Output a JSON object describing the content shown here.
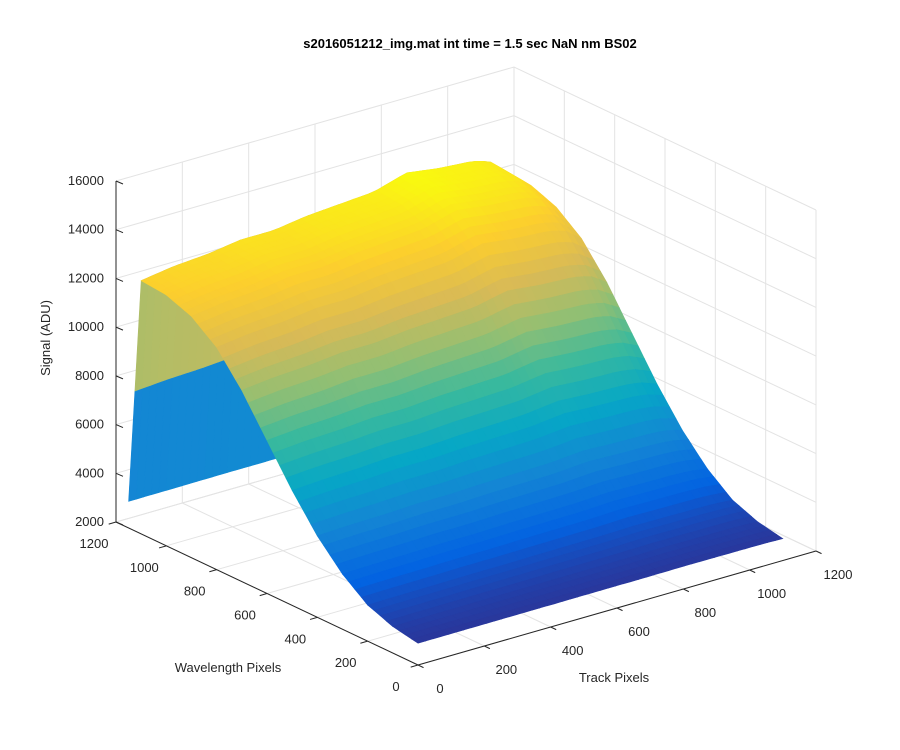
{
  "chart_data": {
    "type": "surface",
    "title": "s2016051212_img.mat int time = 1.5 sec  NaN nm BS02",
    "xlabel": "Track Pixels",
    "ylabel": "Wavelength Pixels",
    "zlabel": "Signal (ADU)",
    "xlim": [
      0,
      1200
    ],
    "ylim": [
      0,
      1200
    ],
    "zlim": [
      2000,
      16000
    ],
    "x_ticks": [
      "0",
      "200",
      "400",
      "600",
      "800",
      "1000",
      "1200"
    ],
    "y_ticks": [
      "0",
      "200",
      "400",
      "600",
      "800",
      "1000",
      "1200"
    ],
    "z_ticks": [
      "2000",
      "4000",
      "6000",
      "8000",
      "10000",
      "12000",
      "14000",
      "16000"
    ],
    "grid": true,
    "colormap": "parula",
    "colors": [
      "#352a87",
      "#0363e1",
      "#1485d4",
      "#06a7c6",
      "#38b99e",
      "#92bf73",
      "#d9ba56",
      "#fcce2e",
      "#f9fb0e"
    ],
    "track_profile": {
      "x": [
        0,
        100,
        200,
        300,
        400,
        500,
        600,
        700,
        800,
        900,
        1000,
        1050,
        1100
      ],
      "z": [
        12400,
        12600,
        12700,
        12900,
        12900,
        13100,
        13200,
        13300,
        13700,
        13500,
        13400,
        13200,
        12600
      ]
    },
    "wavelength_profile": {
      "y": [
        0,
        100,
        200,
        300,
        400,
        500,
        600,
        700,
        800,
        900,
        1000,
        1100,
        1150
      ],
      "relative_signal": [
        0.03,
        0.05,
        0.09,
        0.17,
        0.28,
        0.42,
        0.58,
        0.74,
        0.87,
        0.95,
        0.99,
        1.0,
        0.05
      ]
    },
    "baseline": 2600
  }
}
